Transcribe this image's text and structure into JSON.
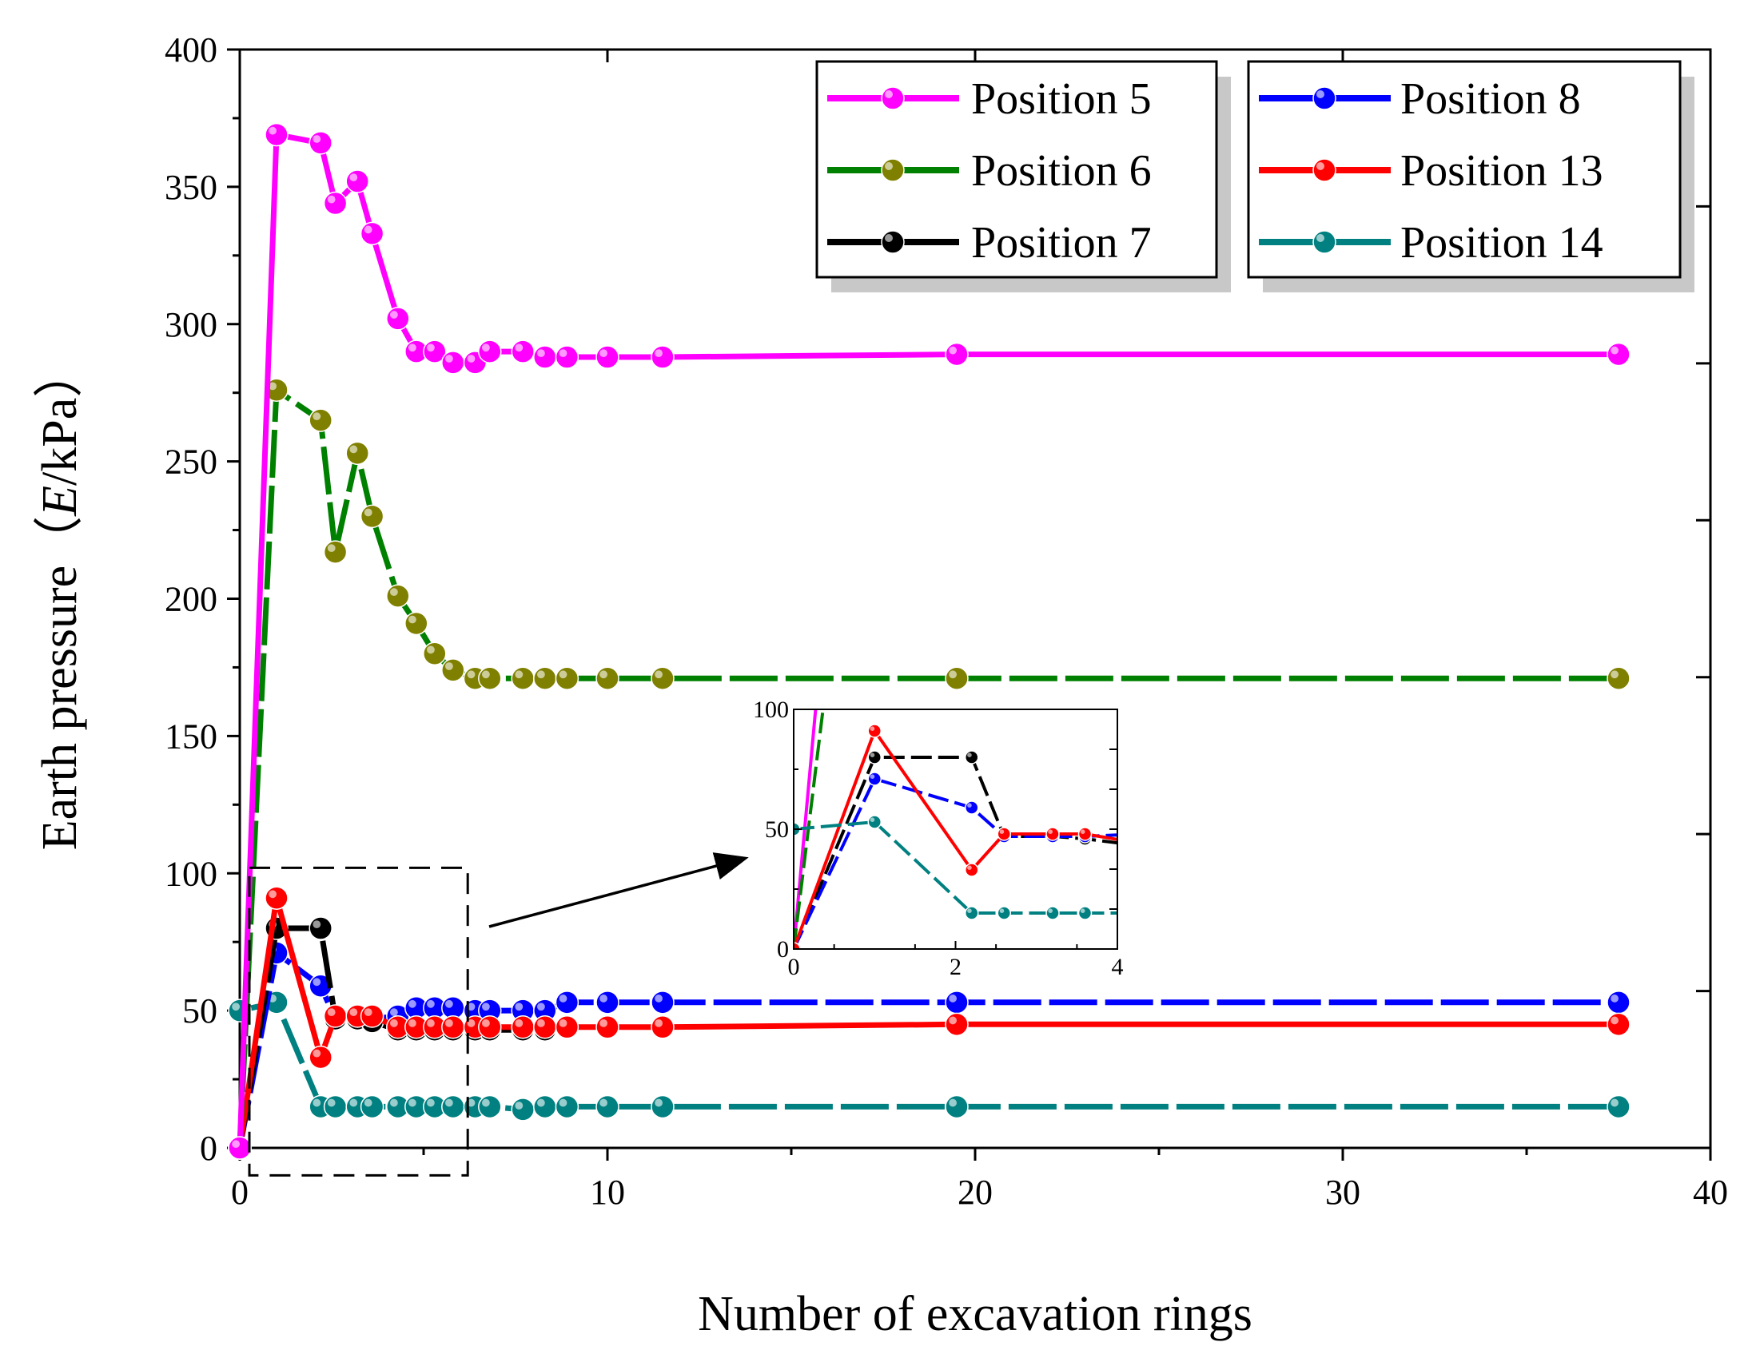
{
  "chart_data": {
    "type": "line",
    "title": "",
    "xlabel": "Number of excavation rings",
    "ylabel_prefix": "Earth pressure（",
    "ylabel_italic": "E",
    "ylabel_suffix": "/kPa）",
    "xlim": [
      0,
      40
    ],
    "ylim": [
      0,
      400
    ],
    "xticks": [
      0,
      10,
      20,
      30,
      40
    ],
    "yticks": [
      0,
      50,
      100,
      150,
      200,
      250,
      300,
      350,
      400
    ],
    "xtick_labels": [
      "0",
      "10",
      "20",
      "30",
      "40"
    ],
    "ytick_labels": [
      "0",
      "50",
      "100",
      "150",
      "200",
      "250",
      "300",
      "350",
      "400"
    ],
    "legend_position": "top-right",
    "series": [
      {
        "name": "Position 5",
        "color": "#FF00FF",
        "dashed": false,
        "x": [
          0,
          1,
          2.2,
          2.6,
          3.2,
          3.6,
          4.3,
          4.8,
          5.3,
          5.8,
          6.4,
          6.8,
          7.7,
          8.3,
          8.9,
          10,
          11.5,
          19.5,
          37.5
        ],
        "y": [
          0,
          369,
          366,
          344,
          352,
          333,
          302,
          290,
          290,
          286,
          286,
          290,
          290,
          288,
          288,
          288,
          288,
          289,
          289
        ]
      },
      {
        "name": "Position 6",
        "color": "#808000",
        "line_color": "#008000",
        "dashed": true,
        "x": [
          0,
          1,
          2.2,
          2.6,
          3.2,
          3.6,
          4.3,
          4.8,
          5.3,
          5.8,
          6.4,
          6.8,
          7.7,
          8.3,
          8.9,
          10,
          11.5,
          19.5,
          37.5
        ],
        "y": [
          0,
          276,
          265,
          217,
          253,
          230,
          201,
          191,
          180,
          174,
          171,
          171,
          171,
          171,
          171,
          171,
          171,
          171,
          171
        ]
      },
      {
        "name": "Position 7",
        "color": "#000000",
        "dashed": true,
        "x": [
          0,
          1,
          2.2,
          2.6,
          3.2,
          3.6,
          4.3,
          4.8,
          5.3,
          5.8,
          6.4,
          6.8,
          7.7,
          8.3
        ],
        "y": [
          0,
          80,
          80,
          47,
          47,
          46,
          43,
          43,
          43,
          43,
          43,
          43,
          43,
          43
        ]
      },
      {
        "name": "Position 8",
        "color": "#0000FF",
        "dashed": true,
        "x": [
          0,
          1,
          2.2,
          2.6,
          3.2,
          3.6,
          4.3,
          4.8,
          5.3,
          5.8,
          6.4,
          6.8,
          7.7,
          8.3,
          8.9,
          10,
          11.5,
          19.5,
          37.5
        ],
        "y": [
          0,
          71,
          59,
          47,
          47,
          47,
          48,
          51,
          51,
          51,
          50,
          50,
          50,
          50,
          53,
          53,
          53,
          53,
          53
        ]
      },
      {
        "name": "Position 13",
        "color": "#FF0000",
        "dashed": false,
        "x": [
          0,
          1,
          2.2,
          2.6,
          3.2,
          3.6,
          4.3,
          4.8,
          5.3,
          5.8,
          6.4,
          6.8,
          7.7,
          8.3,
          8.9,
          10,
          11.5,
          19.5,
          37.5
        ],
        "y": [
          0,
          91,
          33,
          48,
          48,
          48,
          44,
          44,
          44,
          44,
          44,
          44,
          44,
          44,
          44,
          44,
          44,
          45,
          45
        ]
      },
      {
        "name": "Position 14",
        "color": "#008080",
        "dashed": true,
        "x": [
          0,
          1,
          2.2,
          2.6,
          3.2,
          3.6,
          4.3,
          4.8,
          5.3,
          5.8,
          6.4,
          6.8,
          7.7,
          8.3,
          8.9,
          10,
          11.5,
          19.5,
          37.5
        ],
        "y": [
          50,
          53,
          15,
          15,
          15,
          15,
          15,
          15,
          15,
          15,
          15,
          15,
          14,
          15,
          15,
          15,
          15,
          15,
          15
        ]
      }
    ],
    "inset": {
      "xlim": [
        0,
        4
      ],
      "ylim": [
        0,
        100
      ],
      "xticks": [
        0,
        2,
        4
      ],
      "yticks": [
        0,
        50,
        100
      ],
      "xtick_labels": [
        "0",
        "2",
        "4"
      ],
      "ytick_labels": [
        "0",
        "50",
        "100"
      ],
      "zoom_region": {
        "x": [
          0,
          6.2
        ],
        "y": [
          -10,
          102
        ]
      }
    }
  }
}
